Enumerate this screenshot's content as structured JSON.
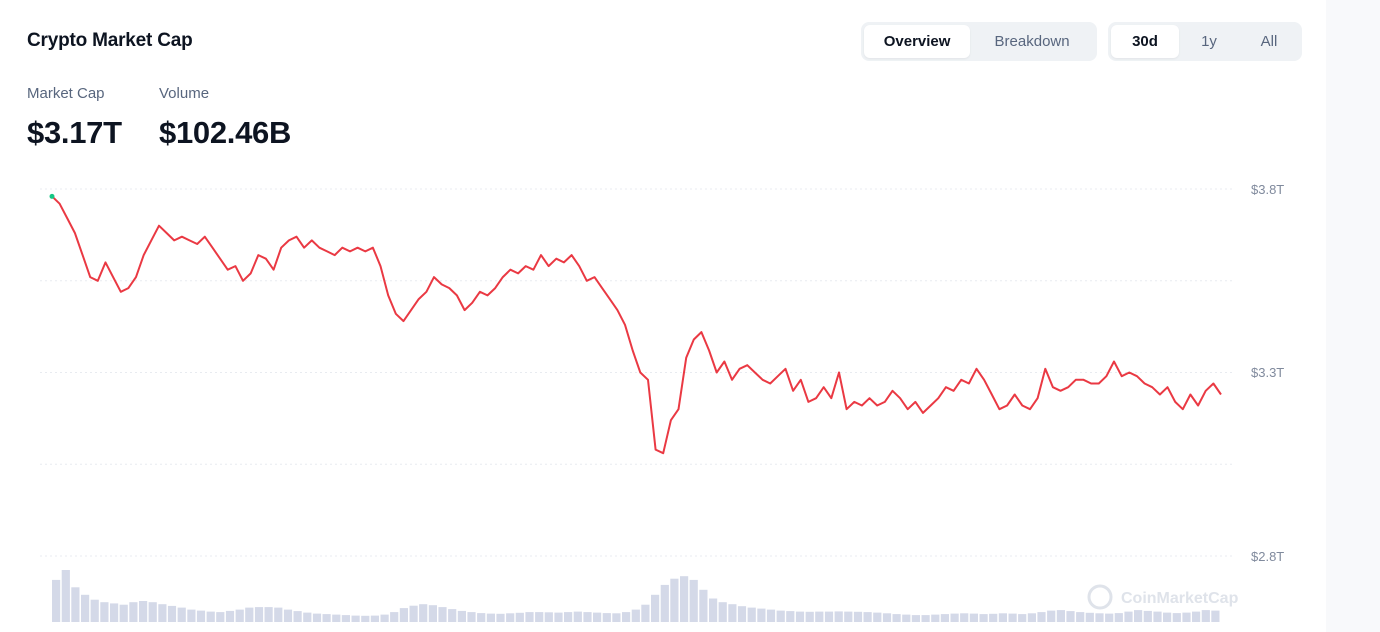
{
  "header": {
    "title": "Crypto Market Cap",
    "view_tabs": [
      {
        "label": "Overview",
        "active": true
      },
      {
        "label": "Breakdown",
        "active": false
      }
    ],
    "range_tabs": [
      {
        "label": "30d",
        "active": true
      },
      {
        "label": "1y",
        "active": false
      },
      {
        "label": "All",
        "active": false
      }
    ]
  },
  "stats": {
    "market_cap_label": "Market Cap",
    "market_cap_value": "$3.17T",
    "volume_label": "Volume",
    "volume_value": "$102.46B"
  },
  "watermark": "CoinMarketCap",
  "colors": {
    "line": "#ea3943",
    "volume_bar": "#d4d9e8",
    "grid": "#e8ebf0",
    "tick_text": "#808a9d"
  },
  "chart_data": {
    "type": "line",
    "series": [
      {
        "values": [
          3.78,
          3.76,
          3.72,
          3.68,
          3.62,
          3.56,
          3.55,
          3.6,
          3.56,
          3.52,
          3.53,
          3.56,
          3.62,
          3.66,
          3.7,
          3.68,
          3.66,
          3.67,
          3.66,
          3.65,
          3.67,
          3.64,
          3.61,
          3.58,
          3.59,
          3.55,
          3.57,
          3.62,
          3.61,
          3.58,
          3.64,
          3.66,
          3.67,
          3.64,
          3.66,
          3.64,
          3.63,
          3.62,
          3.64,
          3.63,
          3.64,
          3.63,
          3.64,
          3.59,
          3.51,
          3.46,
          3.44,
          3.47,
          3.5,
          3.52,
          3.56,
          3.54,
          3.53,
          3.51,
          3.47,
          3.49,
          3.52,
          3.51,
          3.53,
          3.56,
          3.58,
          3.57,
          3.59,
          3.58,
          3.62,
          3.59,
          3.61,
          3.6,
          3.62,
          3.59,
          3.55,
          3.56,
          3.53,
          3.5,
          3.47,
          3.43,
          3.36,
          3.3,
          3.28,
          3.09,
          3.08,
          3.17,
          3.2,
          3.34,
          3.39,
          3.41,
          3.36,
          3.3,
          3.33,
          3.28,
          3.31,
          3.32,
          3.3,
          3.28,
          3.27,
          3.29,
          3.31,
          3.25,
          3.28,
          3.22,
          3.23,
          3.26,
          3.23,
          3.3,
          3.2,
          3.22,
          3.21,
          3.23,
          3.21,
          3.22,
          3.25,
          3.23,
          3.2,
          3.22,
          3.19,
          3.21,
          3.23,
          3.26,
          3.25,
          3.28,
          3.27,
          3.31,
          3.28,
          3.24,
          3.2,
          3.21,
          3.24,
          3.21,
          3.2,
          3.23,
          3.31,
          3.26,
          3.25,
          3.26,
          3.28,
          3.28,
          3.27,
          3.27,
          3.29,
          3.33,
          3.29,
          3.3,
          3.29,
          3.27,
          3.26,
          3.24,
          3.26,
          3.22,
          3.2,
          3.24,
          3.21,
          3.25,
          3.27,
          3.24
        ]
      }
    ],
    "y_ticks": [
      "$3.8T",
      "$3.3T",
      "$2.8T"
    ],
    "ylim": [
      2.8,
      3.8
    ],
    "volume_values": [
      1.7,
      2.1,
      1.4,
      1.1,
      0.9,
      0.8,
      0.75,
      0.7,
      0.8,
      0.85,
      0.8,
      0.72,
      0.65,
      0.58,
      0.5,
      0.46,
      0.42,
      0.4,
      0.45,
      0.5,
      0.58,
      0.6,
      0.6,
      0.58,
      0.5,
      0.44,
      0.38,
      0.34,
      0.32,
      0.3,
      0.28,
      0.26,
      0.25,
      0.26,
      0.3,
      0.4,
      0.56,
      0.66,
      0.72,
      0.68,
      0.6,
      0.52,
      0.45,
      0.4,
      0.36,
      0.34,
      0.33,
      0.35,
      0.37,
      0.4,
      0.4,
      0.39,
      0.38,
      0.4,
      0.42,
      0.4,
      0.38,
      0.36,
      0.35,
      0.4,
      0.5,
      0.7,
      1.1,
      1.5,
      1.75,
      1.85,
      1.7,
      1.3,
      0.95,
      0.8,
      0.72,
      0.64,
      0.58,
      0.54,
      0.5,
      0.46,
      0.44,
      0.42,
      0.41,
      0.42,
      0.42,
      0.43,
      0.42,
      0.41,
      0.4,
      0.38,
      0.35,
      0.32,
      0.3,
      0.28,
      0.28,
      0.3,
      0.32,
      0.34,
      0.35,
      0.34,
      0.32,
      0.33,
      0.35,
      0.34,
      0.32,
      0.35,
      0.4,
      0.46,
      0.48,
      0.44,
      0.4,
      0.37,
      0.35,
      0.34,
      0.36,
      0.42,
      0.48,
      0.45,
      0.42,
      0.38,
      0.36,
      0.38,
      0.42,
      0.48,
      0.46
    ]
  }
}
